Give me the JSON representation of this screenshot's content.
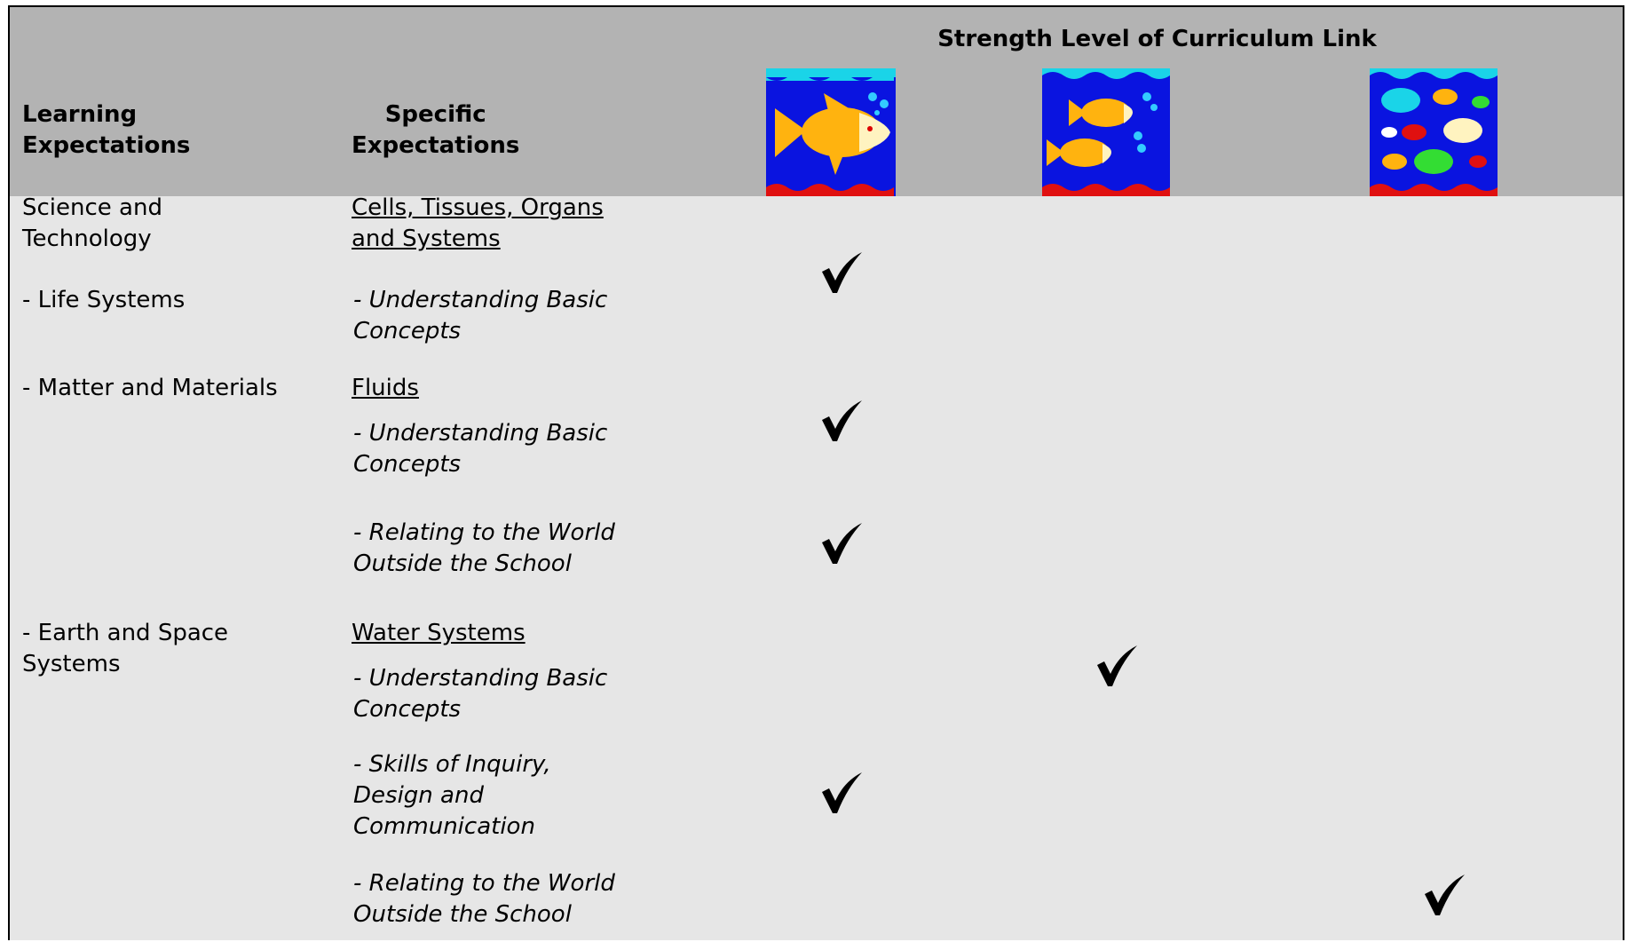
{
  "header": {
    "title": "Strength Level of Curriculum Link",
    "learning": [
      "Learning",
      "Expectations"
    ],
    "specific": [
      "Specific",
      "Expectations"
    ]
  },
  "learning_expectations": [
    [
      "Science and",
      "Technology"
    ],
    [
      "- Life Systems"
    ],
    [
      "- Matter and Materials"
    ],
    [
      "- Earth and Space",
      "Systems"
    ]
  ],
  "specific_expectations": [
    {
      "topic": [
        "Cells, Tissues, Organs",
        "and Systems"
      ]
    },
    {
      "item": [
        "- Understanding Basic",
        "Concepts"
      ]
    },
    {
      "topic": [
        "Fluids"
      ]
    },
    {
      "item": [
        "- Understanding Basic",
        "Concepts"
      ]
    },
    {
      "item": [
        "- Relating to the World",
        "Outside the School"
      ]
    },
    {
      "topic": [
        "Water Systems"
      ]
    },
    {
      "item": [
        "- Understanding Basic",
        "Concepts"
      ]
    },
    {
      "item": [
        "- Skills of Inquiry,",
        "Design and",
        "Communication"
      ]
    },
    {
      "item": [
        "- Relating to the World",
        "Outside the School"
      ]
    }
  ]
}
